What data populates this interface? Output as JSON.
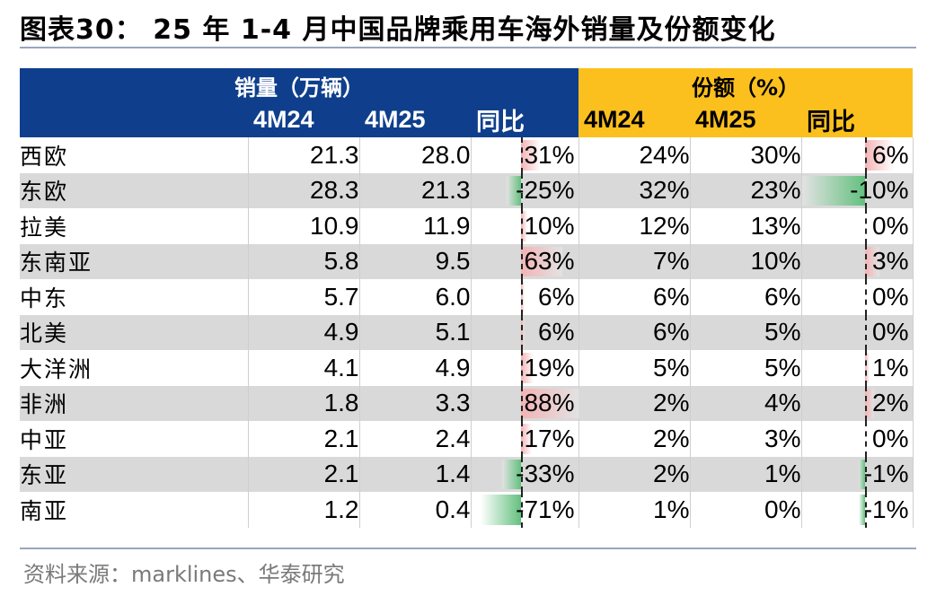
{
  "title": "图表30： 25 年 1-4 月中国品牌乘用车海外销量及份额变化",
  "header": {
    "group_sales": "销量（万辆）",
    "group_share": "份额（%）",
    "cols": [
      "4M24",
      "4M25",
      "同比",
      "4M24",
      "4M25",
      "同比"
    ]
  },
  "rows": [
    {
      "region": "西欧",
      "s24": "21.3",
      "s25": "28.0",
      "syoy": "31%",
      "syoy_val": 31,
      "p24": "24%",
      "p25": "30%",
      "pyoy": "6%",
      "pyoy_val": 6
    },
    {
      "region": "东欧",
      "s24": "28.3",
      "s25": "21.3",
      "syoy": "-25%",
      "syoy_val": -25,
      "p24": "32%",
      "p25": "23%",
      "pyoy": "-10%",
      "pyoy_val": -10
    },
    {
      "region": "拉美",
      "s24": "10.9",
      "s25": "11.9",
      "syoy": "10%",
      "syoy_val": 10,
      "p24": "12%",
      "p25": "13%",
      "pyoy": "0%",
      "pyoy_val": 0
    },
    {
      "region": "东南亚",
      "s24": "5.8",
      "s25": "9.5",
      "syoy": "63%",
      "syoy_val": 63,
      "p24": "7%",
      "p25": "10%",
      "pyoy": "3%",
      "pyoy_val": 3
    },
    {
      "region": "中东",
      "s24": "5.7",
      "s25": "6.0",
      "syoy": "6%",
      "syoy_val": 6,
      "p24": "6%",
      "p25": "6%",
      "pyoy": "0%",
      "pyoy_val": 0
    },
    {
      "region": "北美",
      "s24": "4.9",
      "s25": "5.1",
      "syoy": "6%",
      "syoy_val": 6,
      "p24": "6%",
      "p25": "5%",
      "pyoy": "0%",
      "pyoy_val": 0
    },
    {
      "region": "大洋洲",
      "s24": "4.1",
      "s25": "4.9",
      "syoy": "19%",
      "syoy_val": 19,
      "p24": "5%",
      "p25": "5%",
      "pyoy": "1%",
      "pyoy_val": 1
    },
    {
      "region": "非洲",
      "s24": "1.8",
      "s25": "3.3",
      "syoy": "88%",
      "syoy_val": 88,
      "p24": "2%",
      "p25": "4%",
      "pyoy": "2%",
      "pyoy_val": 2
    },
    {
      "region": "中亚",
      "s24": "2.1",
      "s25": "2.4",
      "syoy": "17%",
      "syoy_val": 17,
      "p24": "2%",
      "p25": "3%",
      "pyoy": "0%",
      "pyoy_val": 0
    },
    {
      "region": "东亚",
      "s24": "2.1",
      "s25": "1.4",
      "syoy": "-33%",
      "syoy_val": -33,
      "p24": "2%",
      "p25": "1%",
      "pyoy": "-1%",
      "pyoy_val": -1
    },
    {
      "region": "南亚",
      "s24": "1.2",
      "s25": "0.4",
      "syoy": "-71%",
      "syoy_val": -71,
      "p24": "1%",
      "p25": "0%",
      "pyoy": "-1%",
      "pyoy_val": -1
    }
  ],
  "colors": {
    "header_blue": "#0f3f8c",
    "header_gold": "#fbc01d",
    "positive": "#f3b3b5",
    "negative": "#63c07f",
    "alt_row": "#d9d9d9"
  },
  "source": "资料来源：marklines、华泰研究"
}
